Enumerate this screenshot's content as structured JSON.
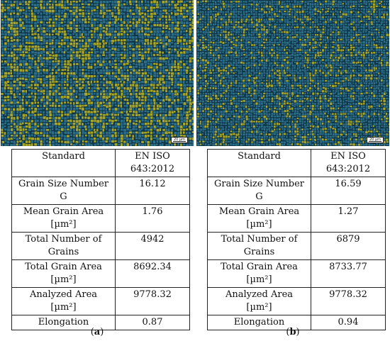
{
  "panels": [
    {
      "id": "a",
      "scale_bar": "20 µm",
      "caption_letter": "a",
      "rows": [
        [
          "Standard",
          "EN ISO\n643:2012"
        ],
        [
          "Grain Size Number\nG",
          "16.12"
        ],
        [
          "Mean Grain Area\n[µm²]",
          "1.76"
        ],
        [
          "Total Number of\nGrains",
          "4942"
        ],
        [
          "Total Grain Area\n[µm²]",
          "8692.34"
        ],
        [
          "Analyzed Area\n[µm²]",
          "9778.32"
        ],
        [
          "Elongation",
          "0.87"
        ]
      ]
    },
    {
      "id": "b",
      "scale_bar": "20 µm",
      "caption_letter": "b",
      "rows": [
        [
          "Standard",
          "EN ISO\n643:2012"
        ],
        [
          "Grain Size Number\nG",
          "16.59"
        ],
        [
          "Mean Grain Area\n[µm²]",
          "1.27"
        ],
        [
          "Total Number of\nGrains",
          "6879"
        ],
        [
          "Total Grain Area\n[µm²]",
          "8733.77"
        ],
        [
          "Analyzed Area\n[µm²]",
          "9778.32"
        ],
        [
          "Elongation",
          "0.94"
        ]
      ]
    }
  ],
  "colors": {
    "grain_background": "#0f3a4c",
    "grain_fill": "#2c6f8a",
    "grain_highlight": "#a6a62a",
    "grain_edge": "#0a2230"
  }
}
